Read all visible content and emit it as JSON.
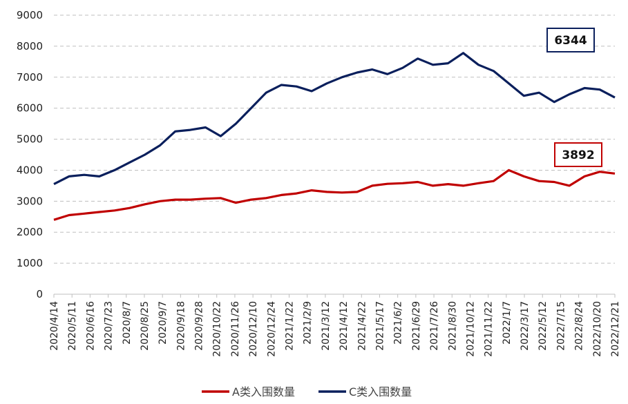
{
  "chart_data": {
    "type": "line",
    "ylim": [
      0,
      9000
    ],
    "yticks": [
      0,
      1000,
      2000,
      3000,
      4000,
      5000,
      6000,
      7000,
      8000,
      9000
    ],
    "x_tick_labels": [
      "2020/4/14",
      "2020/5/11",
      "2020/6/16",
      "2020/7/23",
      "2020/8/7",
      "2020/8/25",
      "2020/9/7",
      "2020/9/18",
      "2020/9/28",
      "2020/10/22",
      "2020/11/26",
      "2020/12/10",
      "2020/12/24",
      "2021/1/22",
      "2021/2/9",
      "2021/3/12",
      "2021/4/12",
      "2021/4/22",
      "2021/5/17",
      "2021/6/2",
      "2021/6/29",
      "2021/7/26",
      "2021/8/30",
      "2021/10/12",
      "2021/11/22",
      "2022/1/7",
      "2022/3/17",
      "2022/5/12",
      "2022/7/15",
      "2022/8/24",
      "2022/10/20",
      "2022/12/21"
    ],
    "grid": true,
    "legend_position": "bottom",
    "series": [
      {
        "name": "A类入围数量",
        "color": "#c00000",
        "values": [
          2400,
          2550,
          2600,
          2650,
          2700,
          2780,
          2900,
          3000,
          3050,
          3050,
          3080,
          3100,
          2950,
          3050,
          3100,
          3200,
          3250,
          3350,
          3300,
          3280,
          3300,
          3500,
          3560,
          3580,
          3620,
          3500,
          3550,
          3500,
          3580,
          3650,
          4000,
          3800,
          3650,
          3620,
          3500,
          3800,
          3950,
          3892
        ],
        "last_value_label": "3892"
      },
      {
        "name": "C类入围数量",
        "color": "#0a1f5c",
        "values": [
          3550,
          3800,
          3850,
          3800,
          4000,
          4250,
          4500,
          4800,
          5250,
          5300,
          5380,
          5100,
          5500,
          6000,
          6500,
          6750,
          6700,
          6550,
          6800,
          7000,
          7150,
          7250,
          7100,
          7300,
          7600,
          7400,
          7450,
          7780,
          7400,
          7200,
          6800,
          6400,
          6500,
          6200,
          6450,
          6650,
          6600,
          6344
        ],
        "last_value_label": "6344"
      }
    ]
  }
}
